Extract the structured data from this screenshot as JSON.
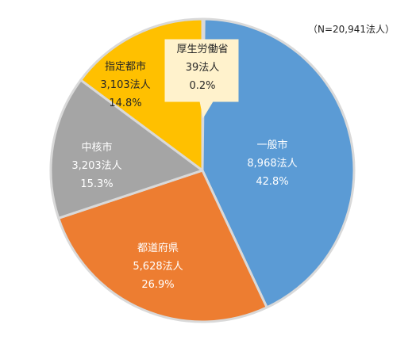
{
  "chart_data": {
    "type": "pie",
    "note": "（N=20,941法人）",
    "total": 20941,
    "unit": "法人",
    "slices": [
      {
        "name": "厚生労働省",
        "value": 39,
        "value_label": "39法人",
        "percent_label": "0.2%",
        "color": "#4472C4"
      },
      {
        "name": "一般市",
        "value": 8968,
        "value_label": "8,968法人",
        "percent_label": "42.8%",
        "color": "#5B9BD5"
      },
      {
        "name": "都道府県",
        "value": 5628,
        "value_label": "5,628法人",
        "percent_label": "26.9%",
        "color": "#ED7D31"
      },
      {
        "name": "中核市",
        "value": 3203,
        "value_label": "3,203法人",
        "percent_label": "15.3%",
        "color": "#A5A5A5"
      },
      {
        "name": "指定都市",
        "value": 3103,
        "value_label": "3,103法人",
        "percent_label": "14.8%",
        "color": "#FFC000"
      }
    ]
  }
}
